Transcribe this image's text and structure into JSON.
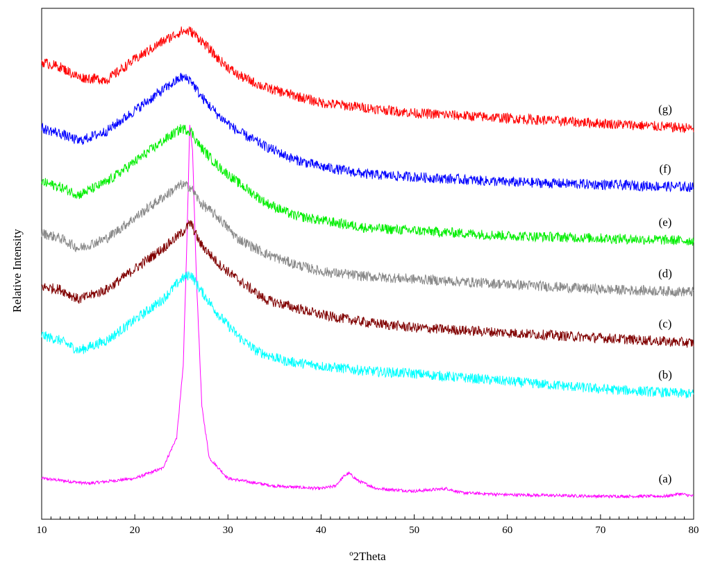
{
  "chart_data": {
    "type": "line",
    "title": "",
    "xlabel": "º2Theta",
    "ylabel": "Relative Intensity",
    "xlim": [
      10,
      80
    ],
    "ylim": [
      0,
      1
    ],
    "x_ticks": [
      "10",
      "20",
      "30",
      "40",
      "50",
      "60",
      "70",
      "80"
    ],
    "grid": false,
    "legend": "none (curves labelled at right end)",
    "y_axis_ticks": "none",
    "series": [
      {
        "name": "(a)",
        "color": "#ff00ff",
        "points": [
          [
            10,
            0.08
          ],
          [
            15,
            0.07
          ],
          [
            20,
            0.08
          ],
          [
            23,
            0.1
          ],
          [
            24.5,
            0.16
          ],
          [
            25.2,
            0.3
          ],
          [
            25.6,
            0.55
          ],
          [
            25.9,
            0.77
          ],
          [
            26.2,
            0.72
          ],
          [
            26.6,
            0.48
          ],
          [
            27.2,
            0.22
          ],
          [
            28,
            0.12
          ],
          [
            30,
            0.08
          ],
          [
            35,
            0.065
          ],
          [
            40,
            0.06
          ],
          [
            41.5,
            0.065
          ],
          [
            42.5,
            0.085
          ],
          [
            43,
            0.09
          ],
          [
            44,
            0.075
          ],
          [
            46,
            0.06
          ],
          [
            50,
            0.055
          ],
          [
            53.5,
            0.06
          ],
          [
            55,
            0.052
          ],
          [
            60,
            0.048
          ],
          [
            70,
            0.045
          ],
          [
            77,
            0.045
          ],
          [
            78.5,
            0.05
          ],
          [
            80,
            0.045
          ]
        ]
      },
      {
        "name": "(b)",
        "color": "#00ffff",
        "points": [
          [
            10,
            0.36
          ],
          [
            12,
            0.35
          ],
          [
            14,
            0.33
          ],
          [
            17,
            0.35
          ],
          [
            20,
            0.39
          ],
          [
            23,
            0.43
          ],
          [
            25,
            0.47
          ],
          [
            26,
            0.48
          ],
          [
            27,
            0.45
          ],
          [
            29,
            0.4
          ],
          [
            31,
            0.36
          ],
          [
            33,
            0.33
          ],
          [
            36,
            0.31
          ],
          [
            40,
            0.3
          ],
          [
            45,
            0.29
          ],
          [
            50,
            0.285
          ],
          [
            60,
            0.27
          ],
          [
            70,
            0.255
          ],
          [
            80,
            0.245
          ]
        ]
      },
      {
        "name": "(c)",
        "color": "#800000",
        "points": [
          [
            10,
            0.455
          ],
          [
            12,
            0.45
          ],
          [
            14,
            0.43
          ],
          [
            17,
            0.45
          ],
          [
            20,
            0.49
          ],
          [
            23,
            0.53
          ],
          [
            25,
            0.56
          ],
          [
            26,
            0.58
          ],
          [
            27,
            0.54
          ],
          [
            29,
            0.5
          ],
          [
            31,
            0.47
          ],
          [
            34,
            0.43
          ],
          [
            36,
            0.42
          ],
          [
            40,
            0.4
          ],
          [
            45,
            0.385
          ],
          [
            50,
            0.375
          ],
          [
            60,
            0.365
          ],
          [
            70,
            0.355
          ],
          [
            80,
            0.345
          ]
        ]
      },
      {
        "name": "(d)",
        "color": "#888888",
        "points": [
          [
            10,
            0.56
          ],
          [
            12,
            0.55
          ],
          [
            14,
            0.53
          ],
          [
            17,
            0.55
          ],
          [
            20,
            0.59
          ],
          [
            23,
            0.63
          ],
          [
            25,
            0.655
          ],
          [
            26,
            0.65
          ],
          [
            27,
            0.62
          ],
          [
            29,
            0.59
          ],
          [
            31,
            0.55
          ],
          [
            34,
            0.52
          ],
          [
            37,
            0.5
          ],
          [
            40,
            0.485
          ],
          [
            45,
            0.475
          ],
          [
            50,
            0.47
          ],
          [
            60,
            0.46
          ],
          [
            70,
            0.45
          ],
          [
            80,
            0.445
          ]
        ]
      },
      {
        "name": "(e)",
        "color": "#00ee00",
        "points": [
          [
            10,
            0.66
          ],
          [
            12,
            0.65
          ],
          [
            14,
            0.635
          ],
          [
            17,
            0.66
          ],
          [
            20,
            0.7
          ],
          [
            23,
            0.74
          ],
          [
            25,
            0.765
          ],
          [
            26,
            0.76
          ],
          [
            27,
            0.73
          ],
          [
            29,
            0.69
          ],
          [
            31,
            0.66
          ],
          [
            34,
            0.62
          ],
          [
            37,
            0.595
          ],
          [
            40,
            0.585
          ],
          [
            45,
            0.57
          ],
          [
            50,
            0.565
          ],
          [
            60,
            0.555
          ],
          [
            70,
            0.55
          ],
          [
            80,
            0.545
          ]
        ]
      },
      {
        "name": "(f)",
        "color": "#0000ff",
        "points": [
          [
            10,
            0.765
          ],
          [
            12,
            0.755
          ],
          [
            14,
            0.74
          ],
          [
            17,
            0.76
          ],
          [
            20,
            0.8
          ],
          [
            23,
            0.84
          ],
          [
            25,
            0.865
          ],
          [
            26,
            0.86
          ],
          [
            27,
            0.83
          ],
          [
            29,
            0.79
          ],
          [
            31,
            0.76
          ],
          [
            34,
            0.73
          ],
          [
            37,
            0.705
          ],
          [
            40,
            0.69
          ],
          [
            45,
            0.675
          ],
          [
            50,
            0.67
          ],
          [
            60,
            0.66
          ],
          [
            70,
            0.655
          ],
          [
            80,
            0.65
          ]
        ]
      },
      {
        "name": "(g)",
        "color": "#ff0000",
        "points": [
          [
            10,
            0.895
          ],
          [
            12,
            0.885
          ],
          [
            14,
            0.865
          ],
          [
            17,
            0.86
          ],
          [
            20,
            0.9
          ],
          [
            23,
            0.935
          ],
          [
            25,
            0.955
          ],
          [
            26,
            0.955
          ],
          [
            27,
            0.94
          ],
          [
            29,
            0.9
          ],
          [
            31,
            0.87
          ],
          [
            34,
            0.845
          ],
          [
            37,
            0.83
          ],
          [
            40,
            0.815
          ],
          [
            45,
            0.805
          ],
          [
            50,
            0.795
          ],
          [
            60,
            0.785
          ],
          [
            70,
            0.775
          ],
          [
            80,
            0.765
          ]
        ]
      }
    ]
  }
}
